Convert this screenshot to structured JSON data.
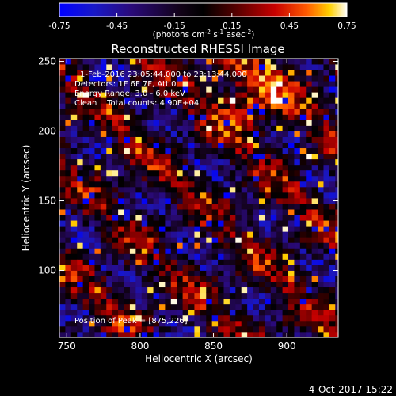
{
  "chart_data": {
    "type": "heatmap",
    "title": "Reconstructed RHESSI Image",
    "xlabel": "Heliocentric X (arcsec)",
    "ylabel": "Heliocentric Y (arcsec)",
    "xlim": [
      745,
      935
    ],
    "ylim": [
      52,
      252
    ],
    "x_ticks": [
      750,
      800,
      850,
      900
    ],
    "y_ticks": [
      100,
      150,
      200,
      250
    ],
    "colorbar": {
      "range": [
        -0.75,
        0.75
      ],
      "ticks": [
        "-0.75",
        "-0.45",
        "-0.15",
        "0.15",
        "0.45",
        "0.75"
      ],
      "units_text": "(photons cm",
      "units_exp1": "-2",
      "units_mid": " s",
      "units_exp2": "-1",
      "units_tail": " asec",
      "units_exp3": "-2",
      "units_close": ")"
    },
    "pixel_size_arcsec": 4,
    "peak": {
      "x": 875,
      "y": 226
    },
    "annotations": {
      "time_range": "1-Feb-2016 23:05:44.000 to 23:13:44.000",
      "detectors": "Detectors: 1F 6F 7F, Att 0",
      "energy": "Energy Range: 3.0 - 6.0 keV",
      "clean": "Clean    Total counts: 4.90E+04",
      "peak_label": "Position of Peak = [875,226]"
    },
    "footer_timestamp": "4-Oct-2017 15:22",
    "colors": {
      "background": "#000000",
      "frame": "#ffffff",
      "text": "#ffffff"
    }
  }
}
